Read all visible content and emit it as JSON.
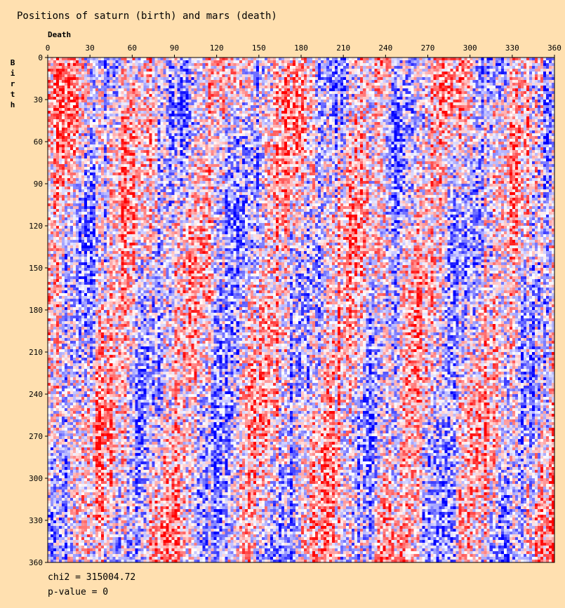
{
  "chart_data": {
    "type": "heatmap",
    "title": "Positions of saturn (birth) and mars (death)",
    "xlabel": "Death",
    "ylabel": "Birth",
    "xlim": [
      0,
      360
    ],
    "ylim": [
      0,
      360
    ],
    "xticks": [
      0,
      30,
      60,
      90,
      120,
      150,
      180,
      210,
      240,
      270,
      300,
      330,
      360
    ],
    "yticks": [
      0,
      30,
      60,
      90,
      120,
      150,
      180,
      210,
      240,
      270,
      300,
      330,
      360
    ],
    "cell_size_degrees": 2,
    "colormap": {
      "low": "#0000ff",
      "mid": "#ffffff",
      "high": "#ff0000"
    },
    "background": "#ffe0b0",
    "stats": {
      "chi2_text": "chi2 = 315004.72",
      "pvalue_text": "p-value = 0"
    }
  }
}
